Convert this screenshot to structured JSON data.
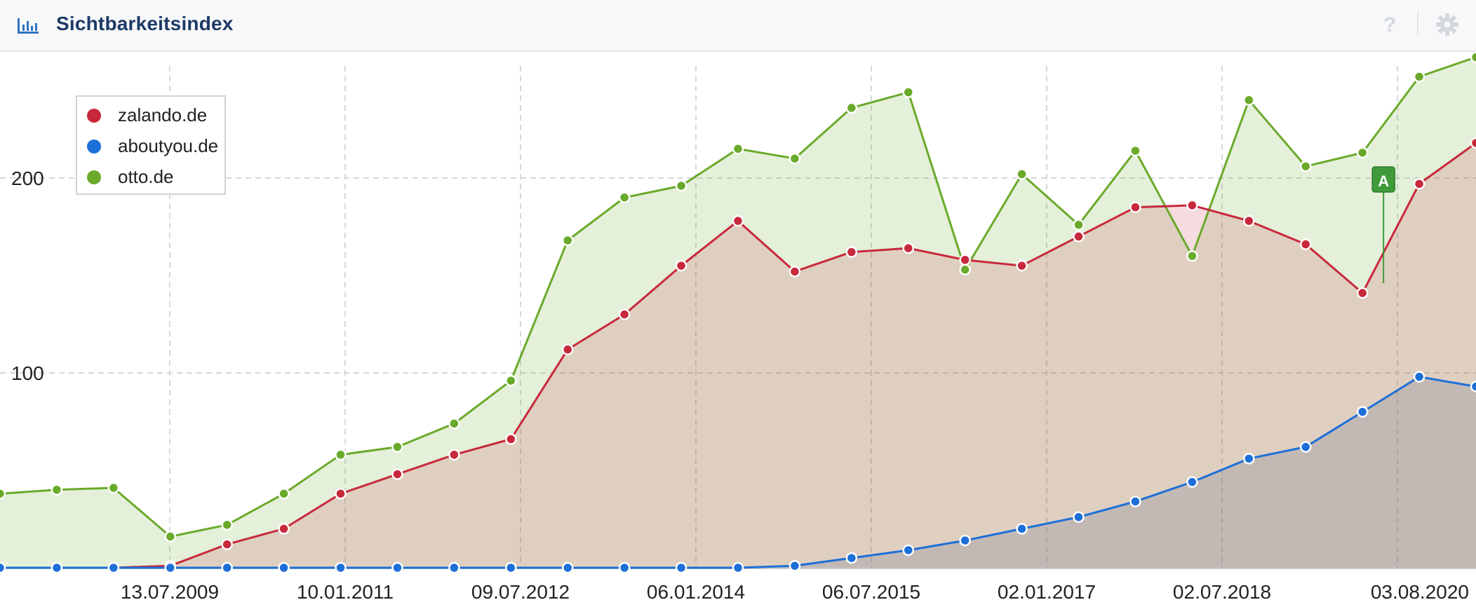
{
  "header": {
    "title": "Sichtbarkeitsindex",
    "help_symbol": "?"
  },
  "colors": {
    "zalando": "#c8283c",
    "aboutyou": "#1d6fd8",
    "otto": "#6aaa2a",
    "marker": "#3f9b39"
  },
  "icons": {
    "chart": "bar-chart-icon",
    "help": "help-icon",
    "settings": "gear-icon"
  },
  "chart_data": {
    "type": "area",
    "title": "Sichtbarkeitsindex",
    "xlabel": "",
    "ylabel": "",
    "ylim": [
      0,
      270
    ],
    "grid": true,
    "legend_position": "top-left",
    "y_ticks": [
      100,
      200
    ],
    "x_ticks": [
      "13.07.2009",
      "10.01.2011",
      "09.07.2012",
      "06.01.2014",
      "06.07.2015",
      "02.01.2017",
      "02.07.2018",
      "03.08.2020"
    ],
    "x": [
      "15.12.2007",
      "07.07.2008",
      "12.01.2009",
      "13.07.2009",
      "11.01.2010",
      "12.07.2010",
      "10.01.2011",
      "11.07.2011",
      "09.01.2012",
      "09.07.2012",
      "07.01.2013",
      "08.07.2013",
      "06.01.2014",
      "07.07.2014",
      "05.01.2015",
      "06.07.2015",
      "04.01.2016",
      "04.07.2016",
      "02.01.2017",
      "03.07.2017",
      "01.01.2018",
      "02.07.2018",
      "31.12.2018",
      "01.07.2019",
      "30.12.2019",
      "03.08.2020",
      "30.12.2020"
    ],
    "series": [
      {
        "name": "zalando.de",
        "values": [
          0,
          0,
          0,
          1,
          12,
          20,
          38,
          48,
          58,
          66,
          112,
          130,
          155,
          178,
          152,
          162,
          164,
          158,
          155,
          170,
          185,
          186,
          178,
          166,
          141,
          197,
          218
        ]
      },
      {
        "name": "aboutyou.de",
        "values": [
          0,
          0,
          0,
          0,
          0,
          0,
          0,
          0,
          0,
          0,
          0,
          0,
          0,
          0,
          1,
          5,
          9,
          14,
          20,
          26,
          34,
          44,
          56,
          62,
          80,
          98,
          93
        ]
      },
      {
        "name": "otto.de",
        "values": [
          38,
          40,
          41,
          16,
          22,
          38,
          58,
          62,
          74,
          96,
          168,
          190,
          196,
          215,
          210,
          236,
          244,
          153,
          202,
          176,
          214,
          160,
          240,
          206,
          213,
          252,
          262
        ]
      }
    ],
    "annotations": [
      "A"
    ]
  }
}
